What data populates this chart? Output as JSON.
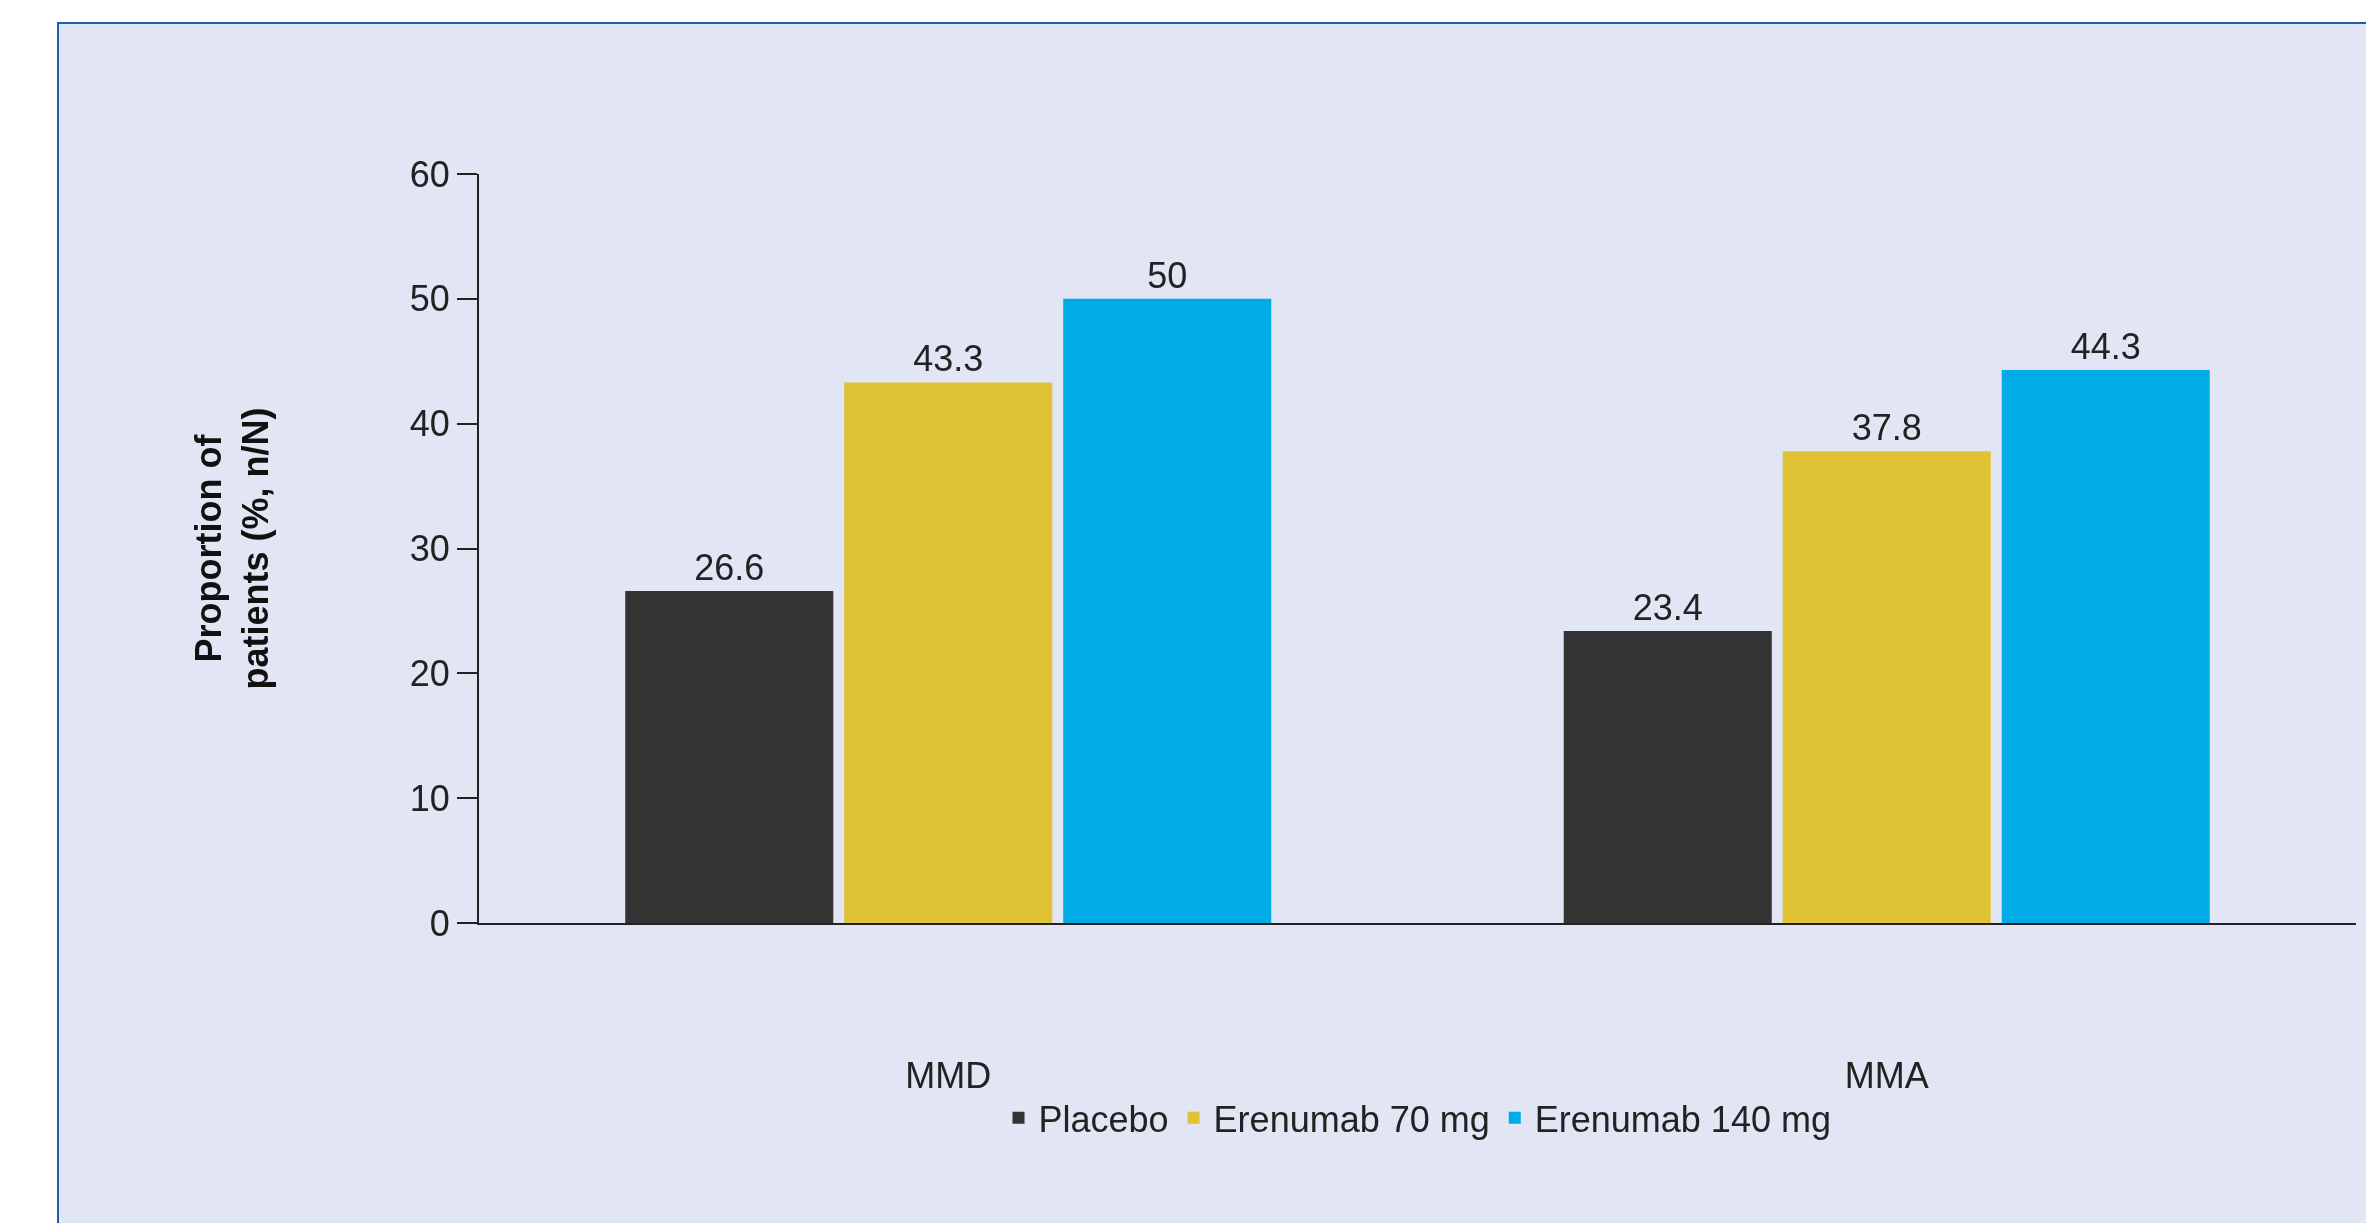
{
  "chart_data": {
    "type": "bar",
    "ylabel": "Proportion of\npatients (%, n/N)",
    "categories": [
      "MMD",
      "MMA"
    ],
    "series": [
      {
        "name": "Placebo",
        "color": "#333333",
        "values": [
          26.6,
          23.4
        ]
      },
      {
        "name": "Erenumab 70 mg",
        "color": "#e0c335",
        "values": [
          43.3,
          37.8
        ]
      },
      {
        "name": "Erenumab 140 mg",
        "color": "#00ace6",
        "values": [
          50,
          44.3
        ]
      }
    ],
    "ylim": [
      0,
      60
    ],
    "yticks": [
      0,
      10,
      20,
      30,
      40,
      50,
      60
    ],
    "grid": false,
    "legend": "bottom",
    "data_labels": true
  }
}
